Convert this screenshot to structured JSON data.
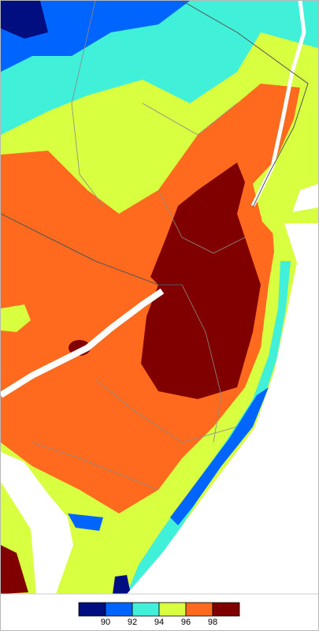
{
  "legend": {
    "colors": [
      "#000e80",
      "#0064ff",
      "#40f0d8",
      "#d8ff40",
      "#ff6a1e",
      "#800000"
    ],
    "labels": [
      90,
      92,
      94,
      96,
      98
    ]
  }
}
